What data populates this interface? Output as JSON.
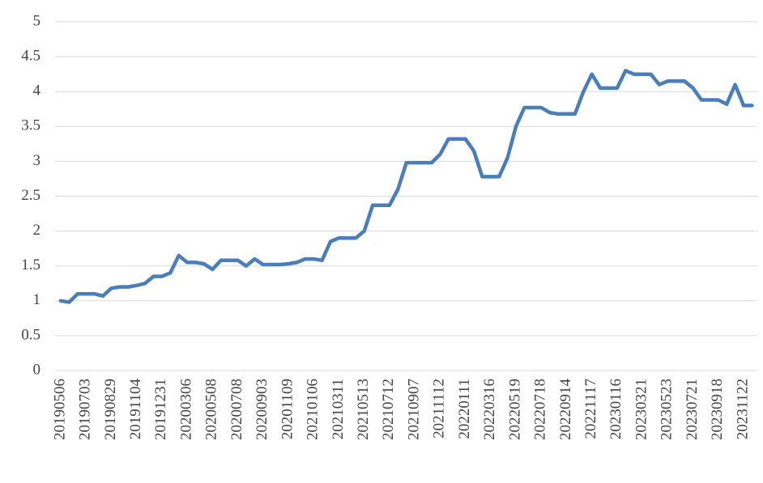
{
  "chart_data": {
    "type": "line",
    "categories": [
      "20190506",
      null,
      null,
      "20190703",
      null,
      null,
      "20190829",
      null,
      null,
      "20191104",
      null,
      null,
      "20191231",
      null,
      null,
      "20200306",
      null,
      null,
      "20200508",
      null,
      null,
      "20200708",
      null,
      null,
      "20200903",
      null,
      null,
      "20201109",
      null,
      null,
      "20210106",
      null,
      null,
      "20210311",
      null,
      null,
      "20210513",
      null,
      null,
      "20210712",
      null,
      null,
      "20210907",
      null,
      null,
      "20211112",
      null,
      null,
      "20220111",
      null,
      null,
      "20220316",
      null,
      null,
      "20220519",
      null,
      null,
      "20220718",
      null,
      null,
      "20220914",
      null,
      null,
      "20221117",
      null,
      null,
      "20230116",
      null,
      null,
      "20230321",
      null,
      null,
      "20230523",
      null,
      null,
      "20230721",
      null,
      null,
      "20230918",
      null,
      null,
      "20231122",
      null
    ],
    "series": [
      {
        "color": "#4a7ebb",
        "values": [
          1.0,
          0.98,
          1.1,
          1.1,
          1.1,
          1.07,
          1.18,
          1.2,
          1.2,
          1.22,
          1.25,
          1.35,
          1.35,
          1.4,
          1.65,
          1.55,
          1.55,
          1.53,
          1.45,
          1.58,
          1.58,
          1.58,
          1.5,
          1.6,
          1.52,
          1.52,
          1.52,
          1.53,
          1.55,
          1.6,
          1.6,
          1.58,
          1.85,
          1.9,
          1.9,
          1.9,
          2.0,
          2.37,
          2.37,
          2.37,
          2.6,
          2.98,
          2.98,
          2.98,
          2.98,
          3.1,
          3.32,
          3.32,
          3.32,
          3.15,
          2.78,
          2.78,
          2.78,
          3.05,
          3.5,
          3.77,
          3.77,
          3.77,
          3.7,
          3.68,
          3.68,
          3.68,
          4.0,
          4.25,
          4.05,
          4.05,
          4.05,
          4.3,
          4.25,
          4.25,
          4.25,
          4.1,
          4.15,
          4.15,
          4.15,
          4.05,
          3.88,
          3.88,
          3.88,
          3.82,
          4.1,
          3.8,
          3.8
        ]
      }
    ],
    "ylim": [
      0,
      5
    ],
    "yticks": [
      0,
      0.5,
      1,
      1.5,
      2,
      2.5,
      3,
      3.5,
      4,
      4.5,
      5
    ],
    "grid": true
  }
}
